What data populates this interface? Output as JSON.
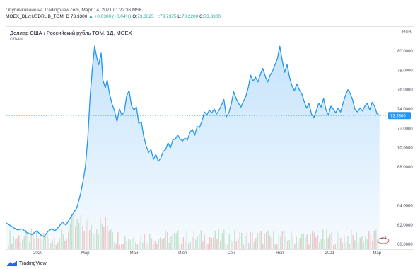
{
  "header": {
    "published": "Опубликовано на TradingView.com, Март 14, 2021 01:22:36 MSK",
    "symbol": "MOEX_DLY:USDRUB_TOM, D",
    "last": "73.3300",
    "change": "▲ +0.0300 (+0.04%)",
    "ohlc": [
      {
        "k": "O:",
        "v": "73.3025"
      },
      {
        "k": "H:",
        "v": "73.7375"
      },
      {
        "k": "L:",
        "v": "73.2200"
      },
      {
        "k": "C:",
        "v": "73.3300"
      }
    ]
  },
  "chart": {
    "title": "Доллар США / Российский рубль TOM, 1Д, MOEX",
    "volume_label": "Объём",
    "currency": "RUB",
    "last_price_label": "73.3300",
    "volume_tag": "12.1",
    "line_color": "#2196f3",
    "fill_color": "#bbdefb",
    "volume_up_color": "#f7c5c5",
    "volume_down_color": "#c8e6c9"
  },
  "chart_data": {
    "type": "area",
    "title": "Доллар США / Российский рубль TOM, 1Д, MOEX",
    "ylim": [
      59.5,
      82.5
    ],
    "y_ticks": [
      60,
      62,
      64,
      68,
      70,
      72,
      74,
      76,
      78,
      80
    ],
    "y_tick_labels": [
      "60.0000",
      "62.0000",
      "64.0000",
      "68.0000",
      "70.0000",
      "72.0000",
      "74.0000",
      "76.0000",
      "78.0000",
      "80.0000"
    ],
    "x_tick_labels": [
      {
        "label": "2020",
        "t": 0.05
      },
      {
        "label": "Мар",
        "t": 2.0
      },
      {
        "label": "Май",
        "t": 4.0
      },
      {
        "label": "Июл",
        "t": 6.0
      },
      {
        "label": "Сен",
        "t": 8.0
      },
      {
        "label": "Ноя",
        "t": 10.0
      },
      {
        "label": "2021",
        "t": 12.05
      },
      {
        "label": "Мар",
        "t": 14.0
      }
    ],
    "x_range": [
      -1.25,
      14.4
    ],
    "series": [
      {
        "points": [
          [
            -1.25,
            62.2
          ],
          [
            -1.0,
            61.8
          ],
          [
            -0.8,
            61.5
          ],
          [
            -0.6,
            61.6
          ],
          [
            -0.4,
            61.2
          ],
          [
            -0.2,
            61.0
          ],
          [
            0.0,
            61.4
          ],
          [
            0.15,
            61.0
          ],
          [
            0.3,
            60.8
          ],
          [
            0.45,
            61.3
          ],
          [
            0.6,
            61.6
          ],
          [
            0.75,
            61.4
          ],
          [
            0.9,
            61.8
          ],
          [
            1.05,
            62.3
          ],
          [
            1.2,
            62.0
          ],
          [
            1.35,
            62.6
          ],
          [
            1.5,
            63.2
          ],
          [
            1.65,
            63.8
          ],
          [
            1.8,
            65.2
          ],
          [
            1.9,
            66.5
          ],
          [
            2.0,
            68.0
          ],
          [
            2.1,
            71.0
          ],
          [
            2.2,
            75.5
          ],
          [
            2.3,
            78.5
          ],
          [
            2.38,
            80.5
          ],
          [
            2.48,
            79.2
          ],
          [
            2.55,
            78.6
          ],
          [
            2.65,
            79.8
          ],
          [
            2.72,
            77.0
          ],
          [
            2.82,
            76.2
          ],
          [
            2.9,
            77.0
          ],
          [
            3.0,
            75.5
          ],
          [
            3.1,
            74.5
          ],
          [
            3.2,
            73.8
          ],
          [
            3.3,
            72.7
          ],
          [
            3.4,
            74.0
          ],
          [
            3.5,
            73.4
          ],
          [
            3.6,
            73.7
          ],
          [
            3.7,
            75.4
          ],
          [
            3.8,
            75.9
          ],
          [
            3.9,
            74.3
          ],
          [
            4.0,
            73.9
          ],
          [
            4.1,
            74.2
          ],
          [
            4.2,
            72.5
          ],
          [
            4.3,
            72.7
          ],
          [
            4.4,
            71.2
          ],
          [
            4.5,
            70.2
          ],
          [
            4.6,
            69.5
          ],
          [
            4.7,
            69.8
          ],
          [
            4.8,
            68.8
          ],
          [
            4.9,
            69.3
          ],
          [
            5.0,
            68.6
          ],
          [
            5.1,
            68.9
          ],
          [
            5.2,
            69.6
          ],
          [
            5.3,
            69.8
          ],
          [
            5.4,
            70.5
          ],
          [
            5.5,
            70.0
          ],
          [
            5.6,
            70.8
          ],
          [
            5.7,
            70.9
          ],
          [
            5.8,
            71.3
          ],
          [
            5.9,
            70.9
          ],
          [
            6.0,
            70.7
          ],
          [
            6.1,
            71.0
          ],
          [
            6.2,
            70.8
          ],
          [
            6.3,
            71.6
          ],
          [
            6.4,
            71.9
          ],
          [
            6.5,
            71.3
          ],
          [
            6.6,
            72.2
          ],
          [
            6.7,
            72.1
          ],
          [
            6.8,
            72.8
          ],
          [
            6.9,
            73.7
          ],
          [
            7.0,
            73.4
          ],
          [
            7.1,
            73.9
          ],
          [
            7.2,
            73.6
          ],
          [
            7.3,
            74.0
          ],
          [
            7.4,
            73.5
          ],
          [
            7.5,
            73.9
          ],
          [
            7.6,
            74.4
          ],
          [
            7.7,
            75.0
          ],
          [
            7.8,
            73.2
          ],
          [
            7.9,
            73.6
          ],
          [
            8.0,
            74.5
          ],
          [
            8.1,
            75.8
          ],
          [
            8.2,
            75.1
          ],
          [
            8.3,
            74.6
          ],
          [
            8.4,
            74.2
          ],
          [
            8.5,
            74.8
          ],
          [
            8.6,
            75.3
          ],
          [
            8.7,
            76.2
          ],
          [
            8.8,
            77.5
          ],
          [
            8.9,
            76.9
          ],
          [
            9.0,
            77.3
          ],
          [
            9.1,
            76.8
          ],
          [
            9.2,
            77.6
          ],
          [
            9.3,
            78.2
          ],
          [
            9.4,
            77.4
          ],
          [
            9.5,
            76.8
          ],
          [
            9.6,
            77.5
          ],
          [
            9.7,
            77.9
          ],
          [
            9.8,
            78.6
          ],
          [
            9.9,
            79.2
          ],
          [
            10.0,
            80.5
          ],
          [
            10.1,
            79.0
          ],
          [
            10.2,
            77.8
          ],
          [
            10.3,
            78.6
          ],
          [
            10.4,
            77.3
          ],
          [
            10.5,
            76.4
          ],
          [
            10.6,
            75.9
          ],
          [
            10.7,
            76.6
          ],
          [
            10.8,
            76.0
          ],
          [
            10.9,
            75.6
          ],
          [
            11.0,
            74.8
          ],
          [
            11.1,
            74.1
          ],
          [
            11.2,
            74.6
          ],
          [
            11.3,
            73.5
          ],
          [
            11.4,
            73.1
          ],
          [
            11.5,
            73.8
          ],
          [
            11.6,
            74.6
          ],
          [
            11.7,
            74.2
          ],
          [
            11.8,
            75.1
          ],
          [
            11.9,
            73.9
          ],
          [
            12.0,
            73.4
          ],
          [
            12.1,
            74.3
          ],
          [
            12.2,
            74.0
          ],
          [
            12.3,
            73.6
          ],
          [
            12.4,
            74.1
          ],
          [
            12.5,
            73.7
          ],
          [
            12.6,
            74.6
          ],
          [
            12.7,
            75.4
          ],
          [
            12.8,
            76.0
          ],
          [
            12.9,
            75.6
          ],
          [
            13.0,
            74.9
          ],
          [
            13.1,
            73.9
          ],
          [
            13.2,
            73.7
          ],
          [
            13.3,
            74.1
          ],
          [
            13.4,
            73.8
          ],
          [
            13.5,
            74.3
          ],
          [
            13.6,
            74.6
          ],
          [
            13.7,
            73.9
          ],
          [
            13.8,
            74.7
          ],
          [
            13.9,
            74.3
          ],
          [
            14.0,
            73.5
          ],
          [
            14.1,
            73.33
          ]
        ]
      }
    ],
    "grid": false,
    "legend": "none",
    "last_value": 73.33,
    "volume_level_top": 63.8
  }
}
